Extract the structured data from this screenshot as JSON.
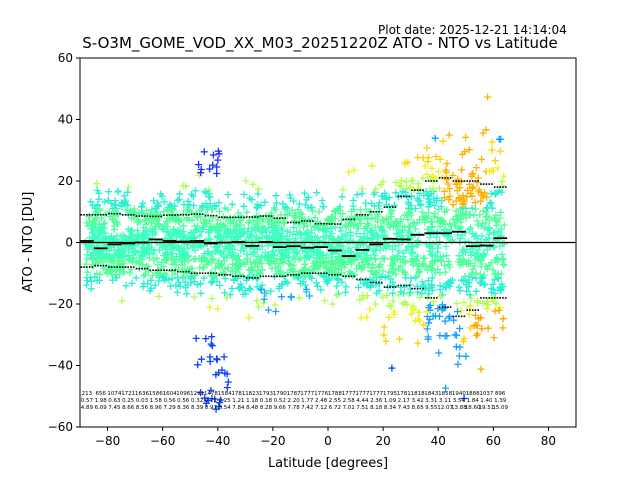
{
  "plot_date": "Plot date: 2025-12-21 14:14:04",
  "chart_data": {
    "type": "scatter",
    "title": "S-O3M_GOME_VOD_XX_M03_20251220Z ATO - NTO vs Latitude",
    "xlabel": "Latitude [degrees]",
    "ylabel": "ATO - NTO [DU]",
    "xlim": [
      -90,
      90
    ],
    "ylim": [
      -60,
      60
    ],
    "xticks": [
      -80,
      -60,
      -40,
      -20,
      0,
      20,
      40,
      60,
      80
    ],
    "yticks": [
      -60,
      -40,
      -20,
      0,
      20,
      40,
      60
    ],
    "zero_line": 0,
    "bins": [
      -87.5,
      -82.5,
      -77.5,
      -72.5,
      -67.5,
      -62.5,
      -57.5,
      -52.5,
      -47.5,
      -42.5,
      -37.5,
      -32.5,
      -27.5,
      -22.5,
      -17.5,
      -12.5,
      -7.5,
      -2.5,
      2.5,
      7.5,
      12.5,
      17.5,
      22.5,
      27.5,
      32.5,
      37.5,
      42.5,
      47.5,
      52.5,
      57.5,
      62.5
    ],
    "mean": [
      0.5,
      -1.9,
      -0.6,
      -0.3,
      0.0,
      1.0,
      0.5,
      0.3,
      0.5,
      -0.3,
      0.0,
      0.2,
      -1.1,
      0.2,
      -1.5,
      -1.2,
      -1.7,
      -1.5,
      -2.6,
      -4.4,
      -2.4,
      -0.6,
      1.2,
      1.0,
      2.5,
      3.0,
      3.0,
      3.5,
      -1.2,
      -1.0,
      1.4
    ],
    "std_upper": [
      9.0,
      9.0,
      9.4,
      9.0,
      8.6,
      8.5,
      8.9,
      9.0,
      9.2,
      8.7,
      8.2,
      8.2,
      8.3,
      8.6,
      7.9,
      6.5,
      7.0,
      6.1,
      6.0,
      7.5,
      9.0,
      10.0,
      11.5,
      15.0,
      17.0,
      20.0,
      21.0,
      20.0,
      20.0,
      19.0,
      18.0
    ],
    "std_lower": [
      -8.0,
      -7.5,
      -8.0,
      -8.0,
      -8.5,
      -9.0,
      -9.0,
      -9.5,
      -10.0,
      -10.0,
      -10.5,
      -11.0,
      -11.5,
      -11.0,
      -11.0,
      -10.5,
      -10.0,
      -10.0,
      -10.5,
      -11.0,
      -12.0,
      -13.0,
      -14.5,
      -14.0,
      -15.0,
      -18.0,
      -21.0,
      -24.0,
      -22.0,
      -18.0,
      -18.0
    ],
    "stat_rows": [
      [
        "213",
        "656",
        "1074",
        "1721",
        "1636",
        "1586",
        "1604",
        "1096",
        "1291",
        "1478",
        "1584",
        "1781",
        "1823",
        "1793",
        "1790",
        "1787",
        "1777",
        "1776",
        "1788",
        "1777",
        "1777",
        "1777",
        "1795",
        "1781",
        "1818",
        "1843",
        "1858",
        "1940",
        "1888",
        "1037",
        "896"
      ],
      [
        "0.57",
        "1.98",
        "0.63",
        "0.25",
        "0.03",
        "1.58",
        "0.56",
        "0.56",
        "0.32",
        "0.71",
        "0.25",
        "1.21",
        "1.18",
        "0.18",
        "0.52",
        "2.20",
        "1.77",
        "2.48",
        "2.55",
        "2.58",
        "4.44",
        "2.36",
        "1.09",
        "2.17",
        "3.42",
        "3.31",
        "3.11",
        "3.54",
        "1.84",
        "1.40",
        "1.39"
      ],
      [
        "4.89",
        "6.09",
        "7.45",
        "8.66",
        "8.56",
        "8.96",
        "7.29",
        "8.36",
        "8.39",
        "8.97",
        "8.54",
        "7.84",
        "8.48",
        "8.28",
        "9.66",
        "7.78",
        "7.42",
        "7.12",
        "6.72",
        "7.01",
        "7.51",
        "8.18",
        "8.34",
        "7.43",
        "8.65",
        "9.55",
        "12.07",
        "13.88",
        "18.60",
        "19.51",
        "15.09"
      ]
    ]
  }
}
